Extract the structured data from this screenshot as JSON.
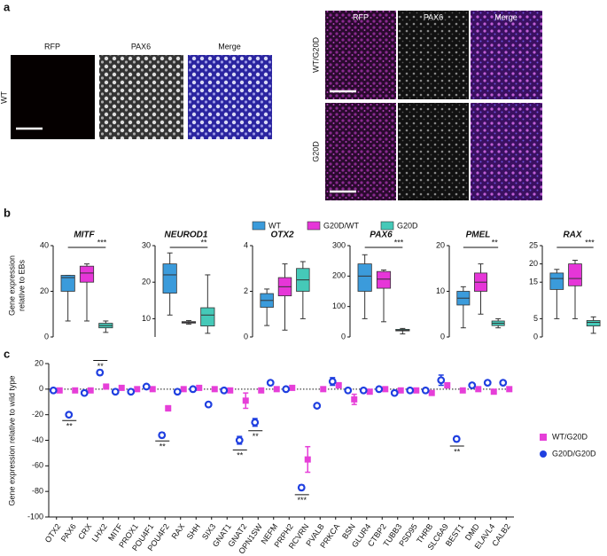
{
  "panel_labels": [
    "a",
    "b",
    "c"
  ],
  "panel_a": {
    "left_columns": [
      "RFP",
      "PAX6",
      "Merge"
    ],
    "left_row": "WT",
    "right_columns": [
      "RFP",
      "PAX6",
      "Merge"
    ],
    "right_rows": [
      "WT/G20D",
      "G20D"
    ]
  },
  "chart_data": [
    {
      "type": "box",
      "title": "MITF",
      "y_label": [
        "Gene expression",
        "relative to EBs"
      ],
      "ylim": [
        0,
        40
      ],
      "yticks": [
        0,
        20,
        40
      ],
      "annotation": "***",
      "series": [
        {
          "name": "WT",
          "color": "#3b9bdb",
          "values": [
            7,
            20,
            26,
            27,
            27
          ]
        },
        {
          "name": "G20D/WT",
          "color": "#e636d8",
          "values": [
            7,
            24,
            28,
            31,
            32
          ]
        },
        {
          "name": "G20D",
          "color": "#45c9b8",
          "values": [
            2,
            4,
            5,
            6,
            7
          ]
        }
      ]
    },
    {
      "type": "box",
      "title": "NEUROD1",
      "ylim": [
        5,
        30
      ],
      "yticks": [
        10,
        20,
        30
      ],
      "annotation": "**",
      "series": [
        {
          "name": "WT",
          "color": "#3b9bdb",
          "values": [
            11,
            17,
            22,
            25,
            28
          ]
        },
        {
          "name": "G20D/WT",
          "color": "#e636d8",
          "values": [
            8.5,
            8.8,
            9,
            9.2,
            9.5
          ]
        },
        {
          "name": "G20D",
          "color": "#45c9b8",
          "values": [
            6,
            8,
            11,
            13,
            22
          ]
        }
      ]
    },
    {
      "type": "box",
      "title": "OTX2",
      "ylim": [
        0,
        4
      ],
      "yticks": [
        0,
        2,
        4
      ],
      "series": [
        {
          "name": "WT",
          "color": "#3b9bdb",
          "values": [
            0.5,
            1.3,
            1.6,
            1.9,
            2.1
          ]
        },
        {
          "name": "G20D/WT",
          "color": "#e636d8",
          "values": [
            0.3,
            1.8,
            2.2,
            2.6,
            3.2
          ]
        },
        {
          "name": "G20D",
          "color": "#45c9b8",
          "values": [
            0.8,
            2,
            2.5,
            3,
            3.3
          ]
        }
      ]
    },
    {
      "type": "box",
      "title": "PAX6",
      "ylim": [
        0,
        300
      ],
      "yticks": [
        0,
        100,
        200,
        300
      ],
      "annotation": "***",
      "series": [
        {
          "name": "WT",
          "color": "#3b9bdb",
          "values": [
            60,
            150,
            200,
            240,
            270
          ]
        },
        {
          "name": "G20D/WT",
          "color": "#e636d8",
          "values": [
            50,
            160,
            190,
            215,
            220
          ]
        },
        {
          "name": "G20D",
          "color": "#45c9b8",
          "values": [
            10,
            20,
            22,
            25,
            28
          ]
        }
      ]
    },
    {
      "type": "box",
      "title": "PMEL",
      "ylim": [
        0,
        20
      ],
      "yticks": [
        0,
        10,
        20
      ],
      "annotation": "**",
      "series": [
        {
          "name": "WT",
          "color": "#3b9bdb",
          "values": [
            2,
            7,
            8.5,
            10,
            11
          ]
        },
        {
          "name": "G20D/WT",
          "color": "#e636d8",
          "values": [
            5,
            10,
            12,
            14,
            16
          ]
        },
        {
          "name": "G20D",
          "color": "#45c9b8",
          "values": [
            2,
            2.5,
            3,
            3.5,
            4
          ]
        }
      ]
    },
    {
      "type": "box",
      "title": "RAX",
      "ylim": [
        0,
        25
      ],
      "yticks": [
        0,
        5,
        15,
        20,
        25
      ],
      "annotation": "***",
      "series": [
        {
          "name": "WT",
          "color": "#3b9bdb",
          "values": [
            5,
            13,
            16,
            17.5,
            18.5
          ]
        },
        {
          "name": "G20D/WT",
          "color": "#e636d8",
          "values": [
            5,
            14,
            16,
            20,
            21
          ]
        },
        {
          "name": "G20D",
          "color": "#45c9b8",
          "values": [
            1,
            3,
            4,
            4.5,
            5.5
          ]
        }
      ]
    },
    {
      "type": "dot",
      "y_label": "Gene expression relative to wild type",
      "ylim": [
        -100,
        20
      ],
      "yticks": [
        20,
        0,
        -20,
        -40,
        -60,
        -80,
        -100
      ],
      "categories": [
        "OTX2",
        "PAX6",
        "CRX",
        "LHX2",
        "MITF",
        "PROX1",
        "POU4F1",
        "POU4F2",
        "RAX",
        "SHH",
        "SIX3",
        "GNAT1",
        "GNAT2",
        "OPN1SW",
        "NEFM",
        "PRPH2",
        "RCVRN",
        "PVALB",
        "PRKCA",
        "BSN",
        "GLUR4",
        "CTBP2",
        "TUBB3",
        "PSD95",
        "THRB",
        "SLC6A9",
        "BEST1",
        "DMD",
        "ELAVL4",
        "CALB2"
      ],
      "series": [
        {
          "name": "WT/G20D",
          "color": "#e63fd8",
          "marker": "square",
          "values": [
            -1,
            -1,
            -1,
            2,
            1,
            0,
            0,
            -15,
            0,
            1,
            0,
            -1,
            -9,
            -1,
            0,
            1,
            -55,
            0,
            3,
            -8,
            -2,
            0,
            -1,
            -1,
            -3,
            3,
            -1,
            0,
            -2,
            0
          ],
          "errors": [
            1,
            1,
            1,
            1,
            1,
            1,
            1,
            2,
            1,
            1,
            1,
            1,
            6,
            1,
            1,
            1,
            10,
            1,
            2,
            4,
            1,
            1,
            1,
            1,
            1,
            2,
            1,
            1,
            1,
            1
          ]
        },
        {
          "name": "G20D/G20D",
          "color": "#1f3fe0",
          "marker": "circle",
          "values": [
            -1,
            -20,
            -3,
            13,
            -2,
            -2,
            2,
            -36,
            -2,
            0,
            -12,
            -1,
            -40,
            -26,
            5,
            0,
            -77,
            -13,
            6,
            -1,
            -1,
            0,
            -3,
            -1,
            -1,
            7,
            -39,
            3,
            5,
            5
          ],
          "errors": [
            1,
            1,
            1,
            2,
            1,
            1,
            1,
            2,
            1,
            1,
            1,
            1,
            3,
            3,
            1,
            1,
            2,
            1,
            3,
            1,
            1,
            1,
            1,
            1,
            1,
            4,
            2,
            1,
            1,
            1
          ]
        }
      ],
      "annotations": [
        {
          "text": "**",
          "category": "PAX6",
          "y": -28
        },
        {
          "text": "**",
          "category": "LHX2",
          "y": 19
        },
        {
          "text": "**",
          "category": "POU4F2",
          "y": -44
        },
        {
          "text": "**",
          "category": "GNAT2",
          "y": -51
        },
        {
          "text": "**",
          "category": "OPN1SW",
          "y": -36
        },
        {
          "text": "***",
          "category": "RCVRN",
          "y": -86
        },
        {
          "text": "**",
          "category": "BEST1",
          "y": -48
        }
      ]
    }
  ]
}
